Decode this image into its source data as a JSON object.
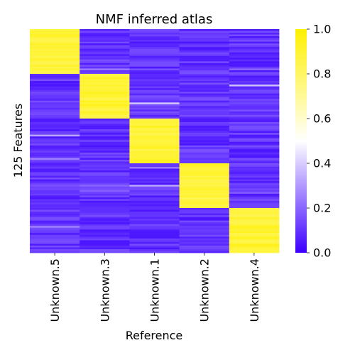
{
  "chart_data": {
    "type": "heatmap",
    "title": "NMF inferred atlas",
    "xlabel": "Reference",
    "ylabel": "125 Features",
    "columns": [
      "Unknown.5",
      "Unknown.3",
      "Unknown.1",
      "Unknown.2",
      "Unknown.4"
    ],
    "n_rows": 125,
    "blocks": [
      {
        "column": "Unknown.5",
        "row_start": 0,
        "row_end": 25,
        "value_approx": 0.93
      },
      {
        "column": "Unknown.3",
        "row_start": 25,
        "row_end": 50,
        "value_approx": 0.93
      },
      {
        "column": "Unknown.1",
        "row_start": 50,
        "row_end": 75,
        "value_approx": 0.93
      },
      {
        "column": "Unknown.2",
        "row_start": 75,
        "row_end": 100,
        "value_approx": 0.93
      },
      {
        "column": "Unknown.4",
        "row_start": 100,
        "row_end": 125,
        "value_approx": 0.93
      }
    ],
    "background_value_approx": 0.1,
    "colorbar": {
      "min": 0.0,
      "max": 1.0,
      "ticks": [
        "0.0",
        "0.2",
        "0.4",
        "0.6",
        "0.8",
        "1.0"
      ],
      "colors": [
        "#3c00ff",
        "#ffffff",
        "#fff000"
      ]
    }
  }
}
